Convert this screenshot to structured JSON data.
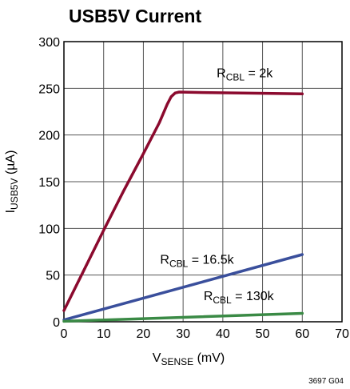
{
  "chart_data": {
    "type": "line",
    "title": "USB5V Current",
    "xlabel": {
      "main": "V",
      "sub": "SENSE",
      "unit": " (mV)"
    },
    "ylabel": {
      "main": "I",
      "sub": "USB5V",
      "unit": " (µA)"
    },
    "xlim": [
      0,
      70
    ],
    "ylim": [
      0,
      300
    ],
    "xticks": [
      "0",
      "10",
      "20",
      "30",
      "40",
      "50",
      "60",
      "70"
    ],
    "yticks": [
      "0",
      "50",
      "100",
      "150",
      "200",
      "250",
      "300"
    ],
    "grid": true,
    "series": [
      {
        "label": {
          "main": "R",
          "sub": "CBL",
          "value": " = 2k"
        },
        "color": "#8b0a2e",
        "points": [
          [
            0,
            12
          ],
          [
            5,
            55
          ],
          [
            10,
            98
          ],
          [
            15,
            140
          ],
          [
            20,
            180
          ],
          [
            24,
            213
          ],
          [
            26,
            233
          ],
          [
            27,
            241
          ],
          [
            28,
            245
          ],
          [
            29,
            246
          ],
          [
            35,
            245.5
          ],
          [
            45,
            245
          ],
          [
            60,
            244
          ]
        ]
      },
      {
        "label": {
          "main": "R",
          "sub": "CBL",
          "value": " = 16.5k"
        },
        "color": "#3a4f9c",
        "points": [
          [
            0,
            2
          ],
          [
            60,
            72
          ]
        ]
      },
      {
        "label": {
          "main": "R",
          "sub": "CBL",
          "value": " = 130k"
        },
        "color": "#3a8a45",
        "points": [
          [
            0,
            0.5
          ],
          [
            60,
            9
          ]
        ]
      }
    ],
    "annotations": [
      {
        "series": 0,
        "x": 45.5,
        "y": 262
      },
      {
        "series": 1,
        "x": 33.5,
        "y": 62
      },
      {
        "series": 2,
        "x": 44,
        "y": 23
      }
    ],
    "code": "3697 G04"
  }
}
